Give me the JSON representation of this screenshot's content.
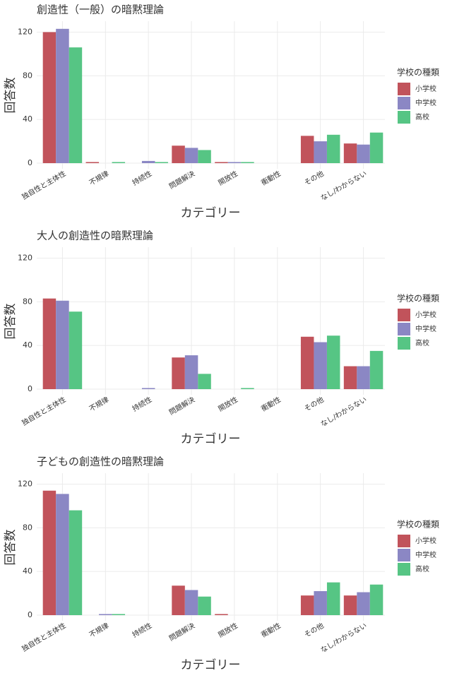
{
  "chart_data": [
    {
      "type": "bar",
      "title": "創造性（一般）の暗黙理論",
      "x_label": "カテゴリー",
      "y_label": "回答数",
      "legend_title": "学校の種類",
      "categories": [
        "独自性と主体性",
        "不規律",
        "持続性",
        "問題解決",
        "開放性",
        "衝動性",
        "その他",
        "なし/わからない"
      ],
      "series": [
        {
          "name": "小学校",
          "color": "#c1535b",
          "values": [
            120,
            1,
            0,
            16,
            1,
            0,
            25,
            18
          ]
        },
        {
          "name": "中学校",
          "color": "#8b87c4",
          "values": [
            123,
            0,
            2,
            14,
            1,
            0,
            20,
            17
          ]
        },
        {
          "name": "高校",
          "color": "#56c584",
          "values": [
            106,
            1,
            1,
            12,
            1,
            0,
            26,
            28
          ]
        }
      ],
      "ylim": [
        0,
        130
      ],
      "yticks": [
        0,
        40,
        80,
        120
      ],
      "grid": true
    },
    {
      "type": "bar",
      "title": "大人の創造性の暗黙理論",
      "x_label": "カテゴリー",
      "y_label": "回答数",
      "legend_title": "学校の種類",
      "categories": [
        "独自性と主体性",
        "不規律",
        "持続性",
        "問題解決",
        "開放性",
        "衝動性",
        "その他",
        "なし/わからない"
      ],
      "series": [
        {
          "name": "小学校",
          "color": "#c1535b",
          "values": [
            83,
            0,
            0,
            29,
            0,
            0,
            48,
            21
          ]
        },
        {
          "name": "中学校",
          "color": "#8b87c4",
          "values": [
            81,
            0,
            1,
            31,
            0,
            0,
            43,
            21
          ]
        },
        {
          "name": "高校",
          "color": "#56c584",
          "values": [
            71,
            0,
            0,
            14,
            1,
            0,
            49,
            35
          ]
        }
      ],
      "ylim": [
        0,
        130
      ],
      "yticks": [
        0,
        40,
        80,
        120
      ],
      "grid": true
    },
    {
      "type": "bar",
      "title": "子どもの創造性の暗黙理論",
      "x_label": "カテゴリー",
      "y_label": "回答数",
      "legend_title": "学校の種類",
      "categories": [
        "独自性と主体性",
        "不規律",
        "持続性",
        "問題解決",
        "開放性",
        "衝動性",
        "その他",
        "なし/わからない"
      ],
      "series": [
        {
          "name": "小学校",
          "color": "#c1535b",
          "values": [
            114,
            0,
            0,
            27,
            1,
            0,
            18,
            18
          ]
        },
        {
          "name": "中学校",
          "color": "#8b87c4",
          "values": [
            111,
            1,
            0,
            23,
            0,
            0,
            22,
            21
          ]
        },
        {
          "name": "高校",
          "color": "#56c584",
          "values": [
            96,
            1,
            0,
            17,
            0,
            0,
            30,
            28
          ]
        }
      ],
      "ylim": [
        0,
        130
      ],
      "yticks": [
        0,
        40,
        80,
        120
      ],
      "grid": true
    }
  ]
}
